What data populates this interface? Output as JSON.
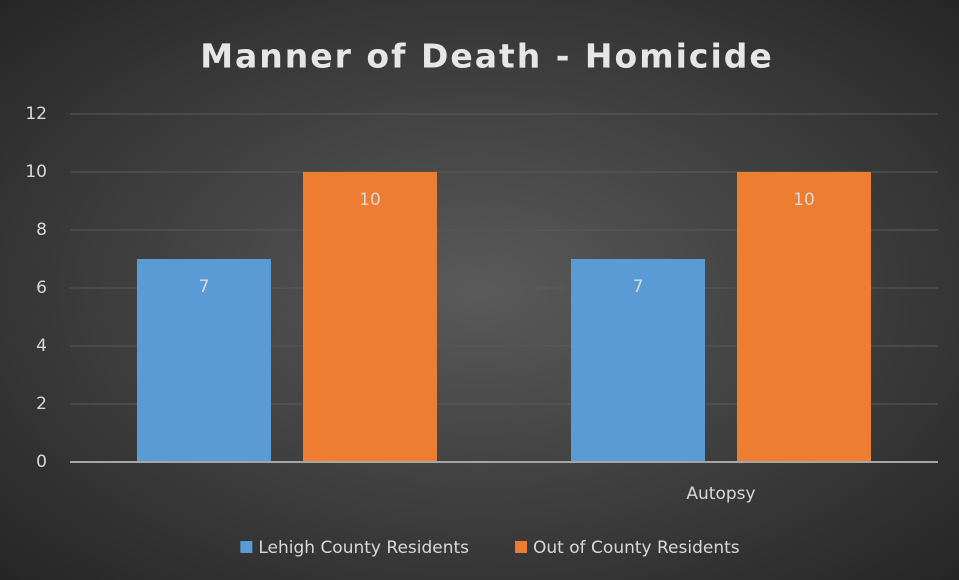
{
  "chart_data": {
    "type": "bar",
    "title": "Manner of Death - Homicide",
    "categories": [
      null,
      "Autopsy"
    ],
    "series": [
      {
        "name": "Lehigh County Residents",
        "color": "#5b9bd5",
        "values": [
          7,
          7
        ]
      },
      {
        "name": "Out of County Residents",
        "color": "#ed7d31",
        "values": [
          10,
          10
        ]
      }
    ],
    "ylim": [
      0,
      12
    ],
    "yticks": [
      0,
      2,
      4,
      6,
      8,
      10,
      12
    ],
    "grid": true,
    "legend": "bottom"
  }
}
